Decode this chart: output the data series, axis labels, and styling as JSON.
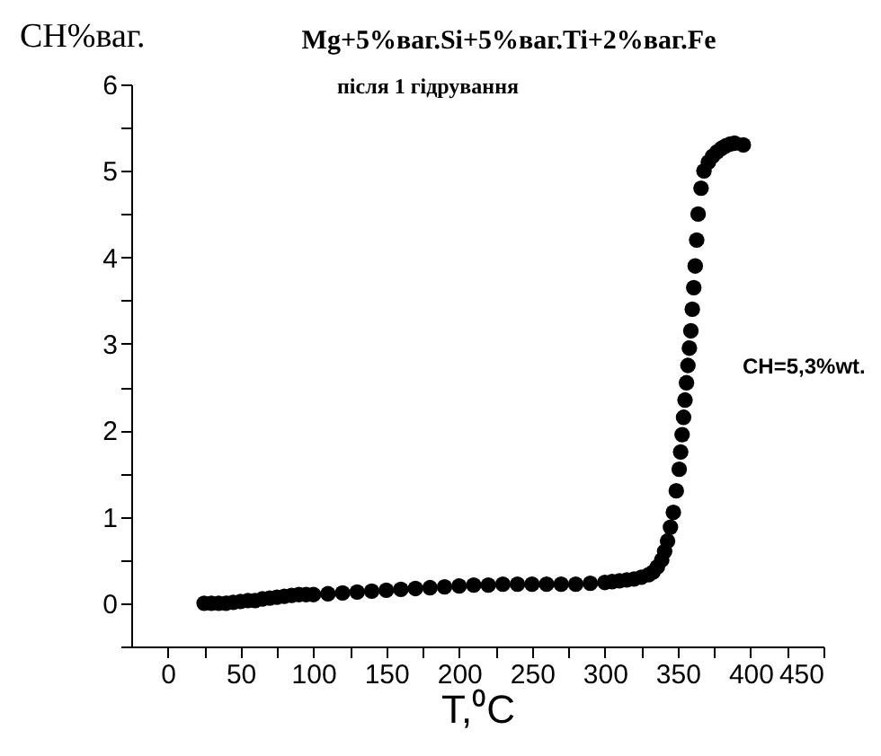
{
  "chart_data": {
    "type": "scatter",
    "title": "Mg+5%ваг.Si+5%ваг.Ti+2%ваг.Fe",
    "subtitle": "після 1 гідрування",
    "xlabel": "T,⁰C",
    "ylabel": "CH%ваг.",
    "annotations": [
      "CH=5,3%wt."
    ],
    "x": [
      25,
      30,
      35,
      40,
      45,
      50,
      55,
      60,
      65,
      70,
      75,
      80,
      85,
      90,
      95,
      100,
      110,
      120,
      130,
      140,
      150,
      160,
      170,
      180,
      190,
      200,
      210,
      220,
      230,
      240,
      250,
      260,
      270,
      280,
      290,
      300,
      305,
      310,
      315,
      320,
      325,
      330,
      333,
      336,
      339,
      341,
      343,
      345,
      347,
      349,
      351,
      352,
      353,
      354,
      355,
      356,
      357,
      358,
      359,
      360,
      361,
      362,
      363,
      364,
      366,
      368,
      371,
      374,
      377,
      380,
      383,
      386,
      389,
      395
    ],
    "series": [
      {
        "color": "#000000",
        "values": [
          0.0,
          0.0,
          0.0,
          0.0,
          0.01,
          0.02,
          0.03,
          0.03,
          0.05,
          0.06,
          0.07,
          0.08,
          0.09,
          0.1,
          0.1,
          0.1,
          0.11,
          0.12,
          0.13,
          0.14,
          0.15,
          0.16,
          0.17,
          0.18,
          0.19,
          0.2,
          0.21,
          0.21,
          0.22,
          0.22,
          0.22,
          0.22,
          0.22,
          0.22,
          0.23,
          0.24,
          0.25,
          0.26,
          0.27,
          0.28,
          0.3,
          0.33,
          0.36,
          0.42,
          0.5,
          0.6,
          0.72,
          0.88,
          1.05,
          1.3,
          1.55,
          1.75,
          1.95,
          2.15,
          2.35,
          2.55,
          2.75,
          2.95,
          3.15,
          3.4,
          3.65,
          3.9,
          4.2,
          4.5,
          4.8,
          5.0,
          5.1,
          5.17,
          5.22,
          5.26,
          5.29,
          5.31,
          5.32,
          5.3
        ]
      }
    ],
    "xlim": [
      -25,
      450
    ],
    "ylim": [
      -0.5,
      6
    ],
    "xticks": [
      0,
      {
        "value": 25,
        "label": null
      },
      50,
      {
        "value": 75,
        "label": null
      },
      100,
      {
        "value": 125,
        "label": null
      },
      150,
      {
        "value": 175,
        "label": null
      },
      200,
      {
        "value": 225,
        "label": null
      },
      250,
      {
        "value": 275,
        "label": null
      },
      300,
      {
        "value": 325,
        "label": null
      },
      350,
      {
        "value": 375,
        "label": null
      },
      400,
      {
        "value": 425,
        "label": null
      },
      450
    ],
    "yticks": [
      {
        "value": -0.5,
        "label": null
      },
      0,
      {
        "value": 0.5,
        "label": null
      },
      1,
      {
        "value": 1.5,
        "label": null
      },
      2,
      {
        "value": 2.5,
        "label": null
      },
      3,
      {
        "value": 3.5,
        "label": null
      },
      4,
      {
        "value": 4.5,
        "label": null
      },
      5,
      {
        "value": 5.5,
        "label": null
      },
      6
    ],
    "marker": "circle",
    "grid": false
  }
}
